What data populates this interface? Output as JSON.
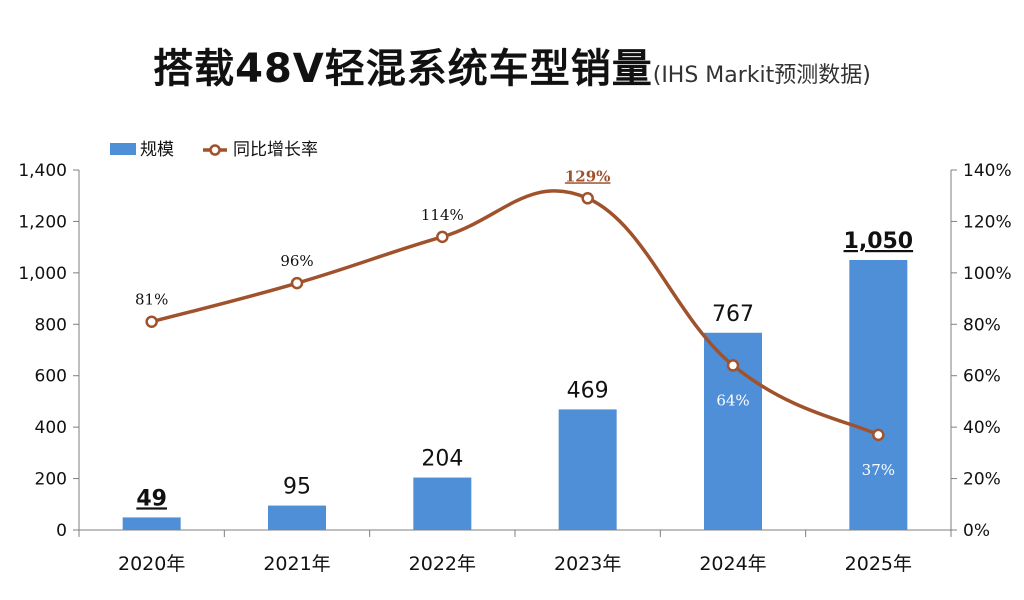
{
  "title": {
    "main": "搭载48V轻混系统车型销量",
    "source": "(IHS Markit预测数据)"
  },
  "colors": {
    "bar": "#4f8fd8",
    "line": "#a0522d",
    "axis": "#7f7f7f"
  },
  "chart_data": {
    "type": "bar",
    "title": "搭载48V轻混系统车型销量",
    "subtitle": "(IHS Markit预测数据)",
    "categories": [
      "2020年",
      "2021年",
      "2022年",
      "2023年",
      "2024年",
      "2025年"
    ],
    "series": [
      {
        "name": "规模",
        "type": "bar",
        "axis": "left",
        "values": [
          49,
          95,
          204,
          469,
          767,
          1050
        ],
        "labels": [
          "49",
          "95",
          "204",
          "469",
          "767",
          "1,050"
        ],
        "emphasized_labels": [
          0,
          5
        ]
      },
      {
        "name": "同比增长率",
        "type": "line",
        "axis": "right",
        "values": [
          81,
          96,
          114,
          129,
          64,
          37
        ],
        "labels": [
          "81%",
          "96%",
          "114%",
          "129%",
          "64%",
          "37%"
        ],
        "emphasized_labels": [
          3
        ],
        "white_labels": [
          4,
          5
        ]
      }
    ],
    "y_left": {
      "range": [
        0,
        1400
      ],
      "ticks": [
        "0",
        "200",
        "400",
        "600",
        "800",
        "1,000",
        "1,200",
        "1,400"
      ]
    },
    "y_right": {
      "range": [
        0,
        140
      ],
      "ticks": [
        "0%",
        "20%",
        "40%",
        "60%",
        "80%",
        "100%",
        "120%",
        "140%"
      ]
    },
    "legend": {
      "position": "top-left"
    },
    "grid": false
  }
}
